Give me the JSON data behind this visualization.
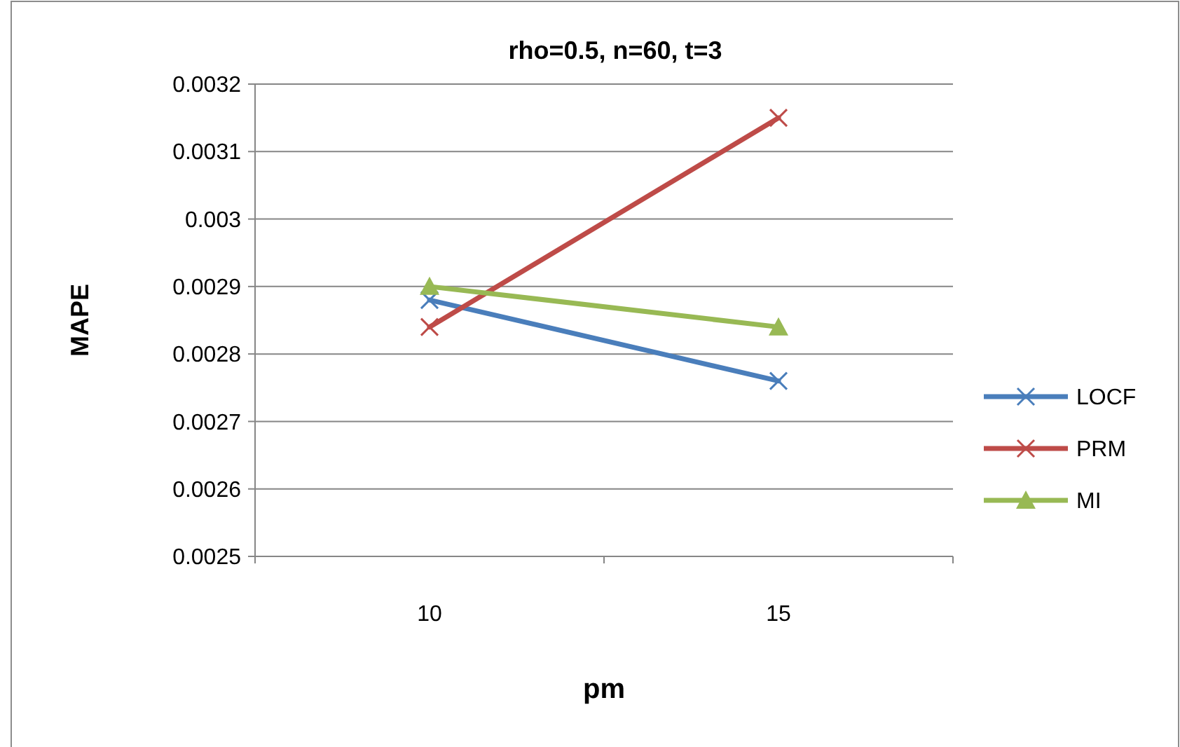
{
  "chart_data": {
    "type": "line",
    "title": "rho=0.5, n=60, t=3",
    "xlabel": "pm",
    "ylabel": "MAPE",
    "categories": [
      "10",
      "15"
    ],
    "series": [
      {
        "name": "LOCF",
        "color": "#4a7ebb",
        "values": [
          0.00288,
          0.00276
        ],
        "marker": "cross"
      },
      {
        "name": "PRM",
        "color": "#be4b48",
        "values": [
          0.00284,
          0.00315
        ],
        "marker": "cross"
      },
      {
        "name": "MI",
        "color": "#98b954",
        "values": [
          0.0029,
          0.00284
        ],
        "marker": "triangle"
      }
    ],
    "ylim": [
      0.0025,
      0.0032
    ],
    "yticks": [
      0.0025,
      0.0026,
      0.0027,
      0.0028,
      0.0029,
      0.003,
      0.0031,
      0.0032
    ],
    "grid": "y",
    "legend": "right",
    "line_style": "solid"
  }
}
